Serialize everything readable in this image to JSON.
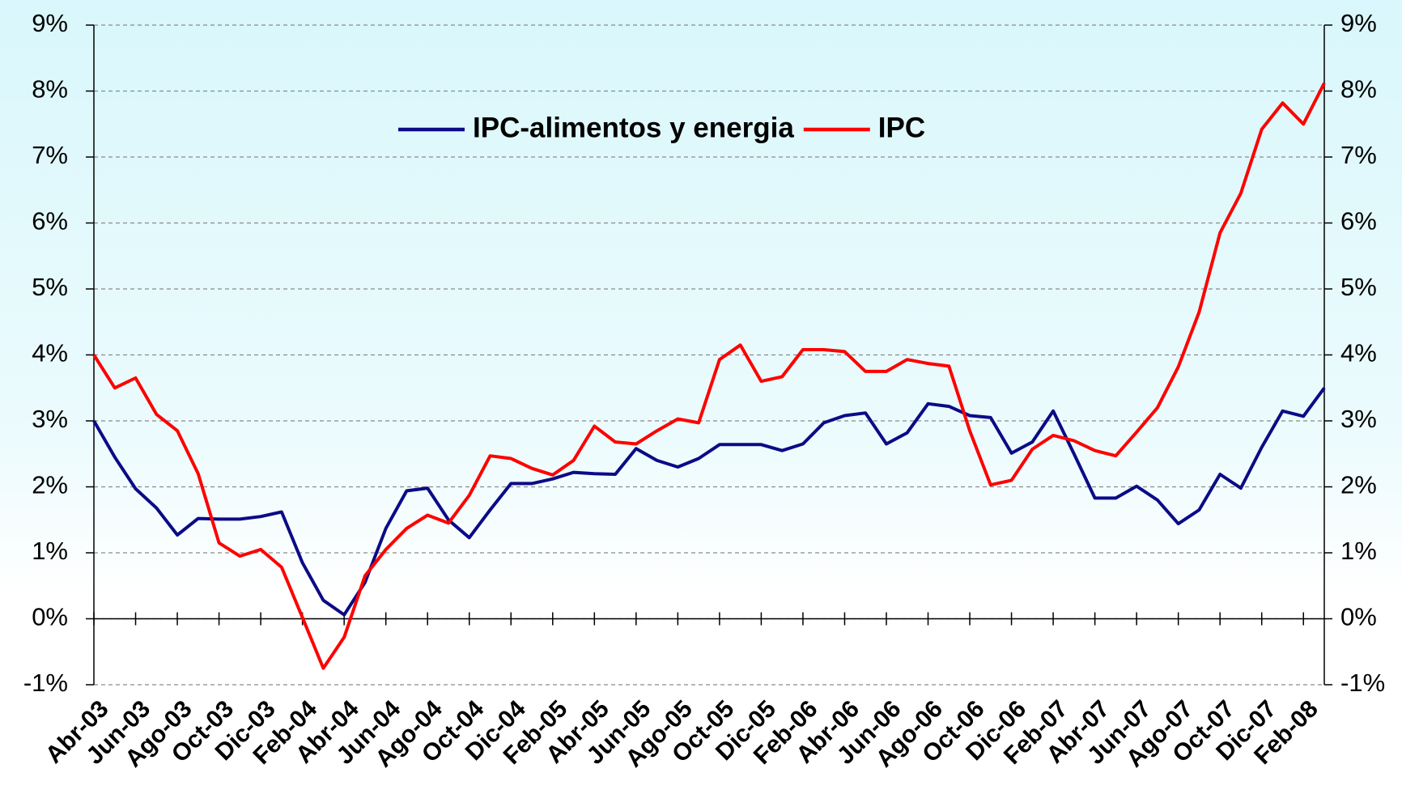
{
  "chart_data": {
    "type": "line",
    "categories": [
      "Abr-03",
      null,
      "Jun-03",
      null,
      "Ago-03",
      null,
      "Oct-03",
      null,
      "Dic-03",
      null,
      "Feb-04",
      null,
      "Abr-04",
      null,
      "Jun-04",
      null,
      "Ago-04",
      null,
      "Oct-04",
      null,
      "Dic-04",
      null,
      "Feb-05",
      null,
      "Abr-05",
      null,
      "Jun-05",
      null,
      "Ago-05",
      null,
      "Oct-05",
      null,
      "Dic-05",
      null,
      "Feb-06",
      null,
      "Abr-06",
      null,
      "Jun-06",
      null,
      "Ago-06",
      null,
      "Oct-06",
      null,
      "Dic-06",
      null,
      "Feb-07",
      null,
      "Abr-07",
      null,
      "Jun-07",
      null,
      "Ago-07",
      null,
      "Oct-07",
      null,
      "Dic-07",
      null,
      "Feb-08",
      null
    ],
    "series": [
      {
        "name": "IPC-alimentos y energia",
        "color": "#0b0b86",
        "values": [
          3.0,
          2.45,
          1.97,
          1.68,
          1.27,
          1.52,
          1.51,
          1.51,
          1.55,
          1.62,
          0.85,
          0.28,
          0.06,
          0.55,
          1.37,
          1.94,
          1.98,
          1.5,
          1.23,
          1.65,
          2.05,
          2.05,
          2.12,
          2.22,
          2.2,
          2.19,
          2.58,
          2.4,
          2.3,
          2.43,
          2.64,
          2.64,
          2.64,
          2.55,
          2.65,
          2.97,
          3.08,
          3.12,
          2.65,
          2.82,
          3.26,
          3.22,
          3.08,
          3.05,
          2.51,
          2.68,
          3.15,
          2.5,
          1.83,
          1.83,
          2.01,
          1.8,
          1.44,
          1.65,
          2.19,
          1.98,
          2.6,
          3.15,
          3.07,
          3.5
        ]
      },
      {
        "name": "IPC",
        "color": "#ff0000",
        "values": [
          4.0,
          3.5,
          3.65,
          3.1,
          2.85,
          2.2,
          1.15,
          0.95,
          1.05,
          0.78,
          0.02,
          -0.75,
          -0.28,
          0.65,
          1.05,
          1.37,
          1.57,
          1.45,
          1.87,
          2.47,
          2.43,
          2.28,
          2.18,
          2.4,
          2.92,
          2.68,
          2.65,
          2.85,
          3.03,
          2.97,
          3.93,
          4.15,
          3.6,
          3.67,
          4.08,
          4.08,
          4.05,
          3.75,
          3.75,
          3.93,
          3.87,
          3.83,
          2.85,
          2.03,
          2.1,
          2.57,
          2.78,
          2.7,
          2.55,
          2.47,
          2.83,
          3.2,
          3.82,
          4.65,
          5.85,
          6.45,
          7.42,
          7.82,
          7.5,
          8.12
        ]
      }
    ],
    "ylim": [
      -1,
      9
    ],
    "yticks": [
      {
        "value": -1,
        "label": "-1%"
      },
      {
        "value": 0,
        "label": "0%"
      },
      {
        "value": 1,
        "label": "1%"
      },
      {
        "value": 2,
        "label": "2%"
      },
      {
        "value": 3,
        "label": "3%"
      },
      {
        "value": 4,
        "label": "4%"
      },
      {
        "value": 5,
        "label": "5%"
      },
      {
        "value": 6,
        "label": "6%"
      },
      {
        "value": 7,
        "label": "7%"
      },
      {
        "value": 8,
        "label": "8%"
      },
      {
        "value": 9,
        "label": "9%"
      }
    ],
    "y2lim": [
      -1,
      9
    ],
    "y2ticks": [
      {
        "value": -1,
        "label": "-1%"
      },
      {
        "value": 0,
        "label": "0%"
      },
      {
        "value": 1,
        "label": "1%"
      },
      {
        "value": 2,
        "label": "2%"
      },
      {
        "value": 3,
        "label": "3%"
      },
      {
        "value": 4,
        "label": "4%"
      },
      {
        "value": 5,
        "label": "5%"
      },
      {
        "value": 6,
        "label": "6%"
      },
      {
        "value": 7,
        "label": "7%"
      },
      {
        "value": 8,
        "label": "8%"
      },
      {
        "value": 9,
        "label": "9%"
      }
    ],
    "grid": true,
    "legend": "top"
  }
}
